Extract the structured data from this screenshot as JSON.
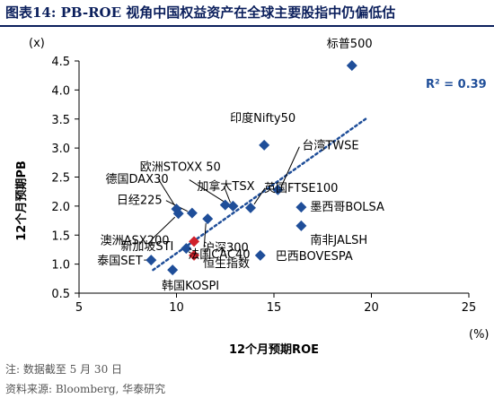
{
  "figure": {
    "title": "图表14:  PB-ROE 视角中国权益资产在全球主要股指中仍偏低估",
    "note": "注: 数据截至 5 月 30 日",
    "source": "资料来源: Bloomberg, 华泰研究"
  },
  "chart_data": {
    "type": "scatter",
    "xlabel": "12个月预期ROE",
    "ylabel": "12个月预期PB",
    "x_unit": "(%)",
    "y_unit": "(x)",
    "xlim": [
      5,
      25
    ],
    "ylim": [
      0.5,
      4.5
    ],
    "xticks": [
      5,
      10,
      15,
      20,
      25
    ],
    "yticks": [
      0.5,
      1.0,
      1.5,
      2.0,
      2.5,
      3.0,
      3.5,
      4.0,
      4.5
    ],
    "ytick_labels": [
      "0.5",
      "1.0",
      "1.5",
      "2.0",
      "2.5",
      "3.0",
      "3.5",
      "4.0",
      "4.5"
    ],
    "grid": false,
    "trendline": {
      "style": "dotted",
      "color": "#1f4e99",
      "x": [
        8.8,
        19.7
      ],
      "y": [
        0.9,
        3.5
      ]
    },
    "r_squared": "R² = 0.39",
    "marker_colors": {
      "global": "#1f4e99",
      "china": "#d0202a"
    },
    "points": [
      {
        "name": "标普500",
        "x": 19.0,
        "y": 4.42,
        "group": "global"
      },
      {
        "name": "印度Nifty50",
        "x": 14.5,
        "y": 3.05,
        "group": "global"
      },
      {
        "name": "欧洲STOXX 50",
        "x": 12.5,
        "y": 2.02,
        "group": "global"
      },
      {
        "name": "加拿大TSX",
        "x": 12.9,
        "y": 2.0,
        "group": "global"
      },
      {
        "name": "台湾TWSE",
        "x": 15.2,
        "y": 2.28,
        "group": "global"
      },
      {
        "name": "德国DAX30",
        "x": 10.0,
        "y": 1.95,
        "group": "global"
      },
      {
        "name": "英国FTSE100",
        "x": 13.8,
        "y": 1.97,
        "group": "global"
      },
      {
        "name": "日经225",
        "x": 10.8,
        "y": 1.88,
        "group": "global"
      },
      {
        "name": "墨西哥BOLSA",
        "x": 16.4,
        "y": 1.98,
        "group": "global"
      },
      {
        "name": "澳洲ASX200",
        "x": 10.1,
        "y": 1.87,
        "group": "global"
      },
      {
        "name": "法国CAC40",
        "x": 11.6,
        "y": 1.78,
        "group": "global"
      },
      {
        "name": "南非JALSH",
        "x": 16.4,
        "y": 1.66,
        "group": "global"
      },
      {
        "name": "新加坡STI",
        "x": 10.5,
        "y": 1.27,
        "group": "global"
      },
      {
        "name": "泰国SET",
        "x": 8.7,
        "y": 1.07,
        "group": "global"
      },
      {
        "name": "巴西BOVESPA",
        "x": 14.3,
        "y": 1.15,
        "group": "global"
      },
      {
        "name": "韩国KOSPI",
        "x": 9.8,
        "y": 0.9,
        "group": "global"
      },
      {
        "name": "沪深300",
        "x": 10.9,
        "y": 1.39,
        "group": "china"
      },
      {
        "name": "恒生指数",
        "x": 10.9,
        "y": 1.15,
        "group": "china"
      }
    ]
  }
}
